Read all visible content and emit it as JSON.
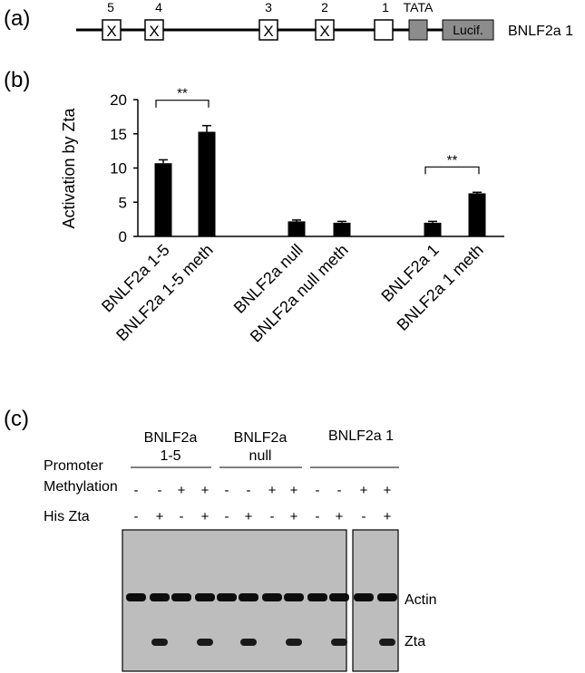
{
  "panels": {
    "a": "(a)",
    "b": "(b)",
    "c": "(c)"
  },
  "construct": {
    "sites": [
      "5",
      "4",
      "3",
      "2",
      "1"
    ],
    "tata": "TATA",
    "lucif": "Lucif.",
    "name": "BNLF2a 1"
  },
  "chart_data": {
    "type": "bar",
    "title": "",
    "xlabel": "",
    "ylabel": "Activation by Zta",
    "ylim": [
      0,
      20
    ],
    "yticks": [
      0,
      5,
      10,
      15,
      20
    ],
    "grid": false,
    "categories": [
      "BNLF2a 1-5",
      "BNLF2a 1-5 meth",
      "BNLF2a null",
      "BNLF2a null meth",
      "BNLF2a 1",
      "BNLF2a 1 meth"
    ],
    "values": [
      10.7,
      15.3,
      2.2,
      2.0,
      2.0,
      6.3
    ],
    "errors": [
      0.5,
      0.9,
      0.2,
      0.2,
      0.2,
      0.15
    ],
    "significance": [
      {
        "pair": [
          0,
          1
        ],
        "label": "**"
      },
      {
        "pair": [
          4,
          5
        ],
        "label": "**"
      }
    ]
  },
  "blot": {
    "groups": [
      "BNLF2a 1-5",
      "BNLF2a null",
      "BNLF2a 1"
    ],
    "row_labels": [
      "Promoter",
      "Methylation",
      "His Zta"
    ],
    "methylation": [
      "-",
      "-",
      "+",
      "+",
      "-",
      "-",
      "+",
      "+",
      "-",
      "-",
      "+",
      "+"
    ],
    "his_zta": [
      "-",
      "+",
      "-",
      "+",
      "-",
      "+",
      "-",
      "+",
      "-",
      "+",
      "-",
      "+"
    ],
    "bands": [
      "Actin",
      "Zta"
    ]
  }
}
